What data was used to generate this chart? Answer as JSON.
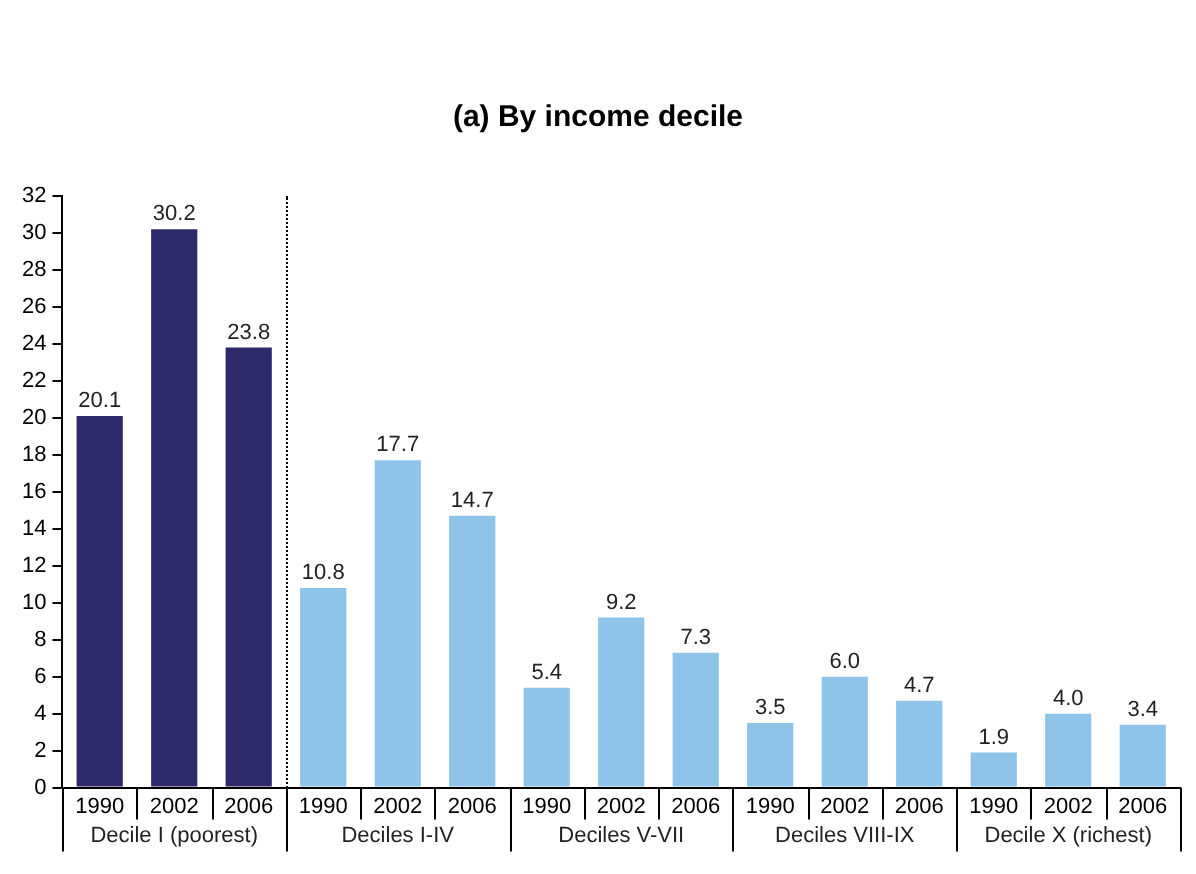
{
  "chart_data": {
    "type": "bar",
    "title": "(a) By income decile",
    "categories": [
      "1990",
      "2002",
      "2006",
      "1990",
      "2002",
      "2006",
      "1990",
      "2002",
      "2006",
      "1990",
      "2002",
      "2006",
      "1990",
      "2002",
      "2006"
    ],
    "values": [
      20.1,
      30.2,
      23.8,
      10.8,
      17.7,
      14.7,
      5.4,
      9.2,
      7.3,
      3.5,
      6.0,
      4.7,
      1.9,
      4.0,
      3.4
    ],
    "value_labels": [
      "20.1",
      "30.2",
      "23.8",
      "10.8",
      "17.7",
      "14.7",
      "5.4",
      "9.2",
      "7.3",
      "3.5",
      "6.0",
      "4.7",
      "1.9",
      "4.0",
      "3.4"
    ],
    "colors": [
      "#2e2a6c",
      "#2e2a6c",
      "#2e2a6c",
      "#8ec3ea",
      "#8ec3ea",
      "#8ec3ea",
      "#8ec3ea",
      "#8ec3ea",
      "#8ec3ea",
      "#8ec3ea",
      "#8ec3ea",
      "#8ec3ea",
      "#8ec3ea",
      "#8ec3ea",
      "#8ec3ea"
    ],
    "annotations": [
      "Decile I (poorest)",
      "Deciles I-IV",
      "Deciles V-VII",
      "Deciles VIII-IX",
      "Decile X (richest)"
    ],
    "ylim": [
      0,
      32
    ],
    "yticks": [
      0,
      2,
      4,
      6,
      8,
      10,
      12,
      14,
      16,
      18,
      20,
      22,
      24,
      26,
      28,
      30,
      32
    ],
    "grid": false,
    "legend": false
  }
}
